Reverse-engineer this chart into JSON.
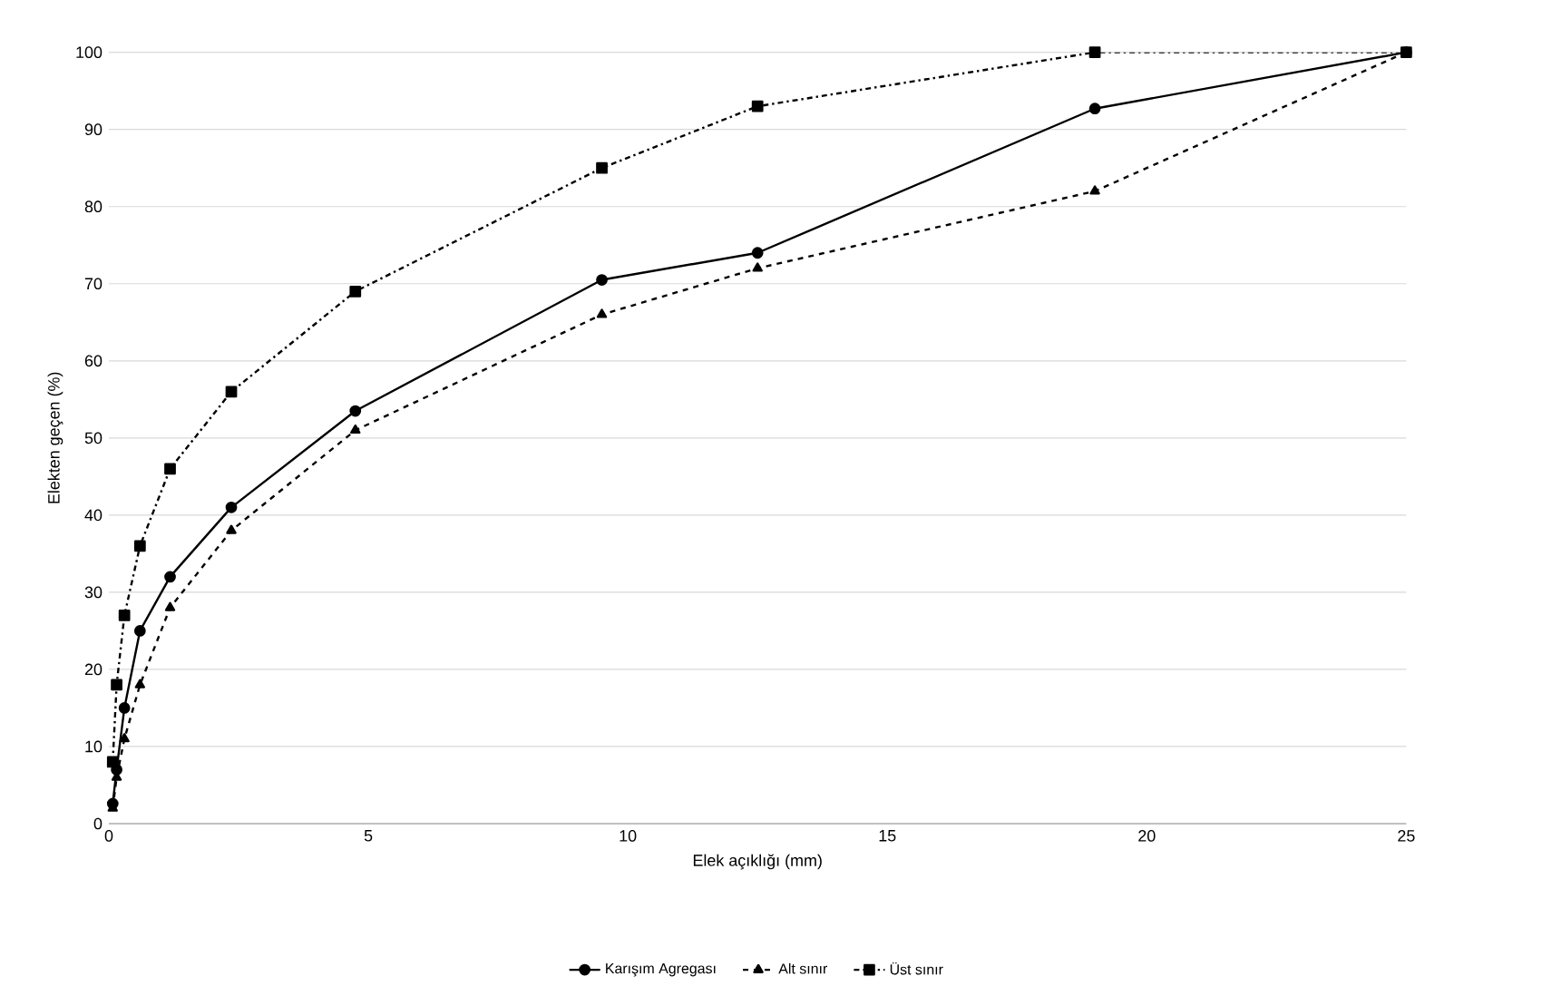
{
  "chart_data": {
    "type": "line",
    "xlabel": "Elek açıklığı (mm)",
    "ylabel": "Elekten geçen (%)",
    "x": [
      0.075,
      0.15,
      0.3,
      0.6,
      1.18,
      2.36,
      4.75,
      9.5,
      12.5,
      19,
      25
    ],
    "series": [
      {
        "name": "Karışım Agregası",
        "color": "#000000",
        "marker": "circle",
        "line_style": "solid",
        "values": [
          2.6,
          7,
          15,
          25,
          32,
          41,
          53.5,
          70.5,
          74,
          92.7,
          100
        ]
      },
      {
        "name": "Alt sınır",
        "color": "#000000",
        "marker": "triangle",
        "line_style": "dashed",
        "values": [
          2,
          6,
          11,
          18,
          28,
          38,
          51,
          66,
          72,
          82,
          100
        ]
      },
      {
        "name": "Üst sınır",
        "color": "#000000",
        "marker": "square",
        "line_style": "dashdot",
        "values": [
          8,
          18,
          27,
          36,
          46,
          56,
          69,
          85,
          93,
          100,
          100
        ]
      }
    ],
    "xlim": [
      0,
      25
    ],
    "ylim": [
      0,
      100
    ],
    "xticks": [
      0,
      5,
      10,
      15,
      20,
      25
    ],
    "yticks": [
      0,
      10,
      20,
      30,
      40,
      50,
      60,
      70,
      80,
      90,
      100
    ],
    "grid": "y",
    "legend": "bottom"
  }
}
